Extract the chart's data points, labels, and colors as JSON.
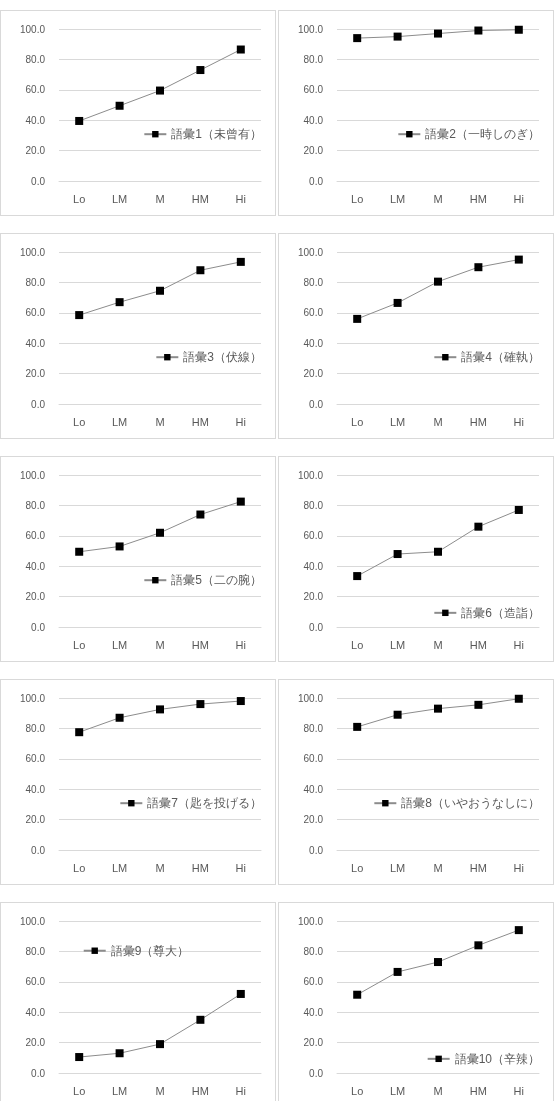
{
  "chart_data": [
    {
      "type": "line",
      "categories": [
        "Lo",
        "LM",
        "M",
        "HM",
        "Hi"
      ],
      "series": [
        {
          "name": "語彙1（未曾有）",
          "color": "#000000",
          "values": [
            39.5,
            49.5,
            59.5,
            73,
            86.5
          ]
        }
      ],
      "ylim": [
        0,
        100
      ],
      "yticks": [
        {
          "value": 0,
          "label": "0.0"
        },
        {
          "value": 20,
          "label": "20.0"
        },
        {
          "value": 40,
          "label": "40.0"
        },
        {
          "value": 60,
          "label": "60.0"
        },
        {
          "value": 80,
          "label": "80.0"
        },
        {
          "value": 100,
          "label": "100.0"
        }
      ],
      "grid": "y",
      "marker": "square",
      "legend": "right"
    },
    {
      "type": "line",
      "categories": [
        "Lo",
        "LM",
        "M",
        "HM",
        "Hi"
      ],
      "series": [
        {
          "name": "語彙2（一時しのぎ）",
          "color": "#000000",
          "values": [
            94,
            95,
            97,
            99,
            99.5
          ]
        }
      ],
      "ylim": [
        0,
        100
      ],
      "yticks": [
        {
          "value": 0,
          "label": "0.0"
        },
        {
          "value": 20,
          "label": "20.0"
        },
        {
          "value": 40,
          "label": "40.0"
        },
        {
          "value": 60,
          "label": "60.0"
        },
        {
          "value": 80,
          "label": "80.0"
        },
        {
          "value": 100,
          "label": "100.0"
        }
      ],
      "grid": "y",
      "marker": "square",
      "legend": "right"
    },
    {
      "type": "line",
      "categories": [
        "Lo",
        "LM",
        "M",
        "HM",
        "Hi"
      ],
      "series": [
        {
          "name": "語彙3（伏線）",
          "color": "#000000",
          "values": [
            58.5,
            67,
            74.5,
            88,
            93.5
          ]
        }
      ],
      "ylim": [
        0,
        100
      ],
      "yticks": [
        {
          "value": 0,
          "label": "0.0"
        },
        {
          "value": 20,
          "label": "20.0"
        },
        {
          "value": 40,
          "label": "40.0"
        },
        {
          "value": 60,
          "label": "60.0"
        },
        {
          "value": 80,
          "label": "80.0"
        },
        {
          "value": 100,
          "label": "100.0"
        }
      ],
      "grid": "y",
      "marker": "square",
      "legend": "right"
    },
    {
      "type": "line",
      "categories": [
        "Lo",
        "LM",
        "M",
        "HM",
        "Hi"
      ],
      "series": [
        {
          "name": "語彙4（確執）",
          "color": "#000000",
          "values": [
            56,
            66.5,
            80.5,
            90,
            95
          ]
        }
      ],
      "ylim": [
        0,
        100
      ],
      "yticks": [
        {
          "value": 0,
          "label": "0.0"
        },
        {
          "value": 20,
          "label": "20.0"
        },
        {
          "value": 40,
          "label": "40.0"
        },
        {
          "value": 60,
          "label": "60.0"
        },
        {
          "value": 80,
          "label": "80.0"
        },
        {
          "value": 100,
          "label": "100.0"
        }
      ],
      "grid": "y",
      "marker": "square",
      "legend": "right"
    },
    {
      "type": "line",
      "categories": [
        "Lo",
        "LM",
        "M",
        "HM",
        "Hi"
      ],
      "series": [
        {
          "name": "語彙5（二の腕）",
          "color": "#000000",
          "values": [
            49.5,
            53,
            62,
            74,
            82.5
          ]
        }
      ],
      "ylim": [
        0,
        100
      ],
      "yticks": [
        {
          "value": 0,
          "label": "0.0"
        },
        {
          "value": 20,
          "label": "20.0"
        },
        {
          "value": 40,
          "label": "40.0"
        },
        {
          "value": 60,
          "label": "60.0"
        },
        {
          "value": 80,
          "label": "80.0"
        },
        {
          "value": 100,
          "label": "100.0"
        }
      ],
      "grid": "y",
      "marker": "square",
      "legend": "right"
    },
    {
      "type": "line",
      "categories": [
        "Lo",
        "LM",
        "M",
        "HM",
        "Hi"
      ],
      "series": [
        {
          "name": "語彙6（造詣）",
          "color": "#000000",
          "values": [
            33.5,
            48,
            49.5,
            66,
            77
          ]
        }
      ],
      "ylim": [
        0,
        100
      ],
      "yticks": [
        {
          "value": 0,
          "label": "0.0"
        },
        {
          "value": 20,
          "label": "20.0"
        },
        {
          "value": 40,
          "label": "40.0"
        },
        {
          "value": 60,
          "label": "60.0"
        },
        {
          "value": 80,
          "label": "80.0"
        },
        {
          "value": 100,
          "label": "100.0"
        }
      ],
      "grid": "y",
      "marker": "square",
      "legend": "bottom right"
    },
    {
      "type": "line",
      "categories": [
        "Lo",
        "LM",
        "M",
        "HM",
        "Hi"
      ],
      "series": [
        {
          "name": "語彙7（匙を投げる）",
          "color": "#000000",
          "values": [
            77.5,
            87,
            92.5,
            96,
            98
          ]
        }
      ],
      "ylim": [
        0,
        100
      ],
      "yticks": [
        {
          "value": 0,
          "label": "0.0"
        },
        {
          "value": 20,
          "label": "20.0"
        },
        {
          "value": 40,
          "label": "40.0"
        },
        {
          "value": 60,
          "label": "60.0"
        },
        {
          "value": 80,
          "label": "80.0"
        },
        {
          "value": 100,
          "label": "100.0"
        }
      ],
      "grid": "y",
      "marker": "square",
      "legend": "right"
    },
    {
      "type": "line",
      "categories": [
        "Lo",
        "LM",
        "M",
        "HM",
        "Hi"
      ],
      "series": [
        {
          "name": "語彙8（いやおうなしに）",
          "color": "#000000",
          "values": [
            81,
            89,
            93,
            95.5,
            99.5
          ]
        }
      ],
      "ylim": [
        0,
        100
      ],
      "yticks": [
        {
          "value": 0,
          "label": "0.0"
        },
        {
          "value": 20,
          "label": "20.0"
        },
        {
          "value": 40,
          "label": "40.0"
        },
        {
          "value": 60,
          "label": "60.0"
        },
        {
          "value": 80,
          "label": "80.0"
        },
        {
          "value": 100,
          "label": "100.0"
        }
      ],
      "grid": "y",
      "marker": "square",
      "legend": "right"
    },
    {
      "type": "line",
      "categories": [
        "Lo",
        "LM",
        "M",
        "HM",
        "Hi"
      ],
      "series": [
        {
          "name": "語彙9（尊大）",
          "color": "#000000",
          "values": [
            10.5,
            13,
            19,
            35,
            52
          ]
        }
      ],
      "ylim": [
        0,
        100
      ],
      "yticks": [
        {
          "value": 0,
          "label": "0.0"
        },
        {
          "value": 20,
          "label": "20.0"
        },
        {
          "value": 40,
          "label": "40.0"
        },
        {
          "value": 60,
          "label": "60.0"
        },
        {
          "value": 80,
          "label": "80.0"
        },
        {
          "value": 100,
          "label": "100.0"
        }
      ],
      "grid": "y",
      "marker": "square",
      "legend": "top left"
    },
    {
      "type": "line",
      "categories": [
        "Lo",
        "LM",
        "M",
        "HM",
        "Hi"
      ],
      "series": [
        {
          "name": "語彙10（辛辣）",
          "color": "#000000",
          "values": [
            51.5,
            66.5,
            73,
            84,
            94
          ]
        }
      ],
      "ylim": [
        0,
        100
      ],
      "yticks": [
        {
          "value": 0,
          "label": "0.0"
        },
        {
          "value": 20,
          "label": "20.0"
        },
        {
          "value": 40,
          "label": "40.0"
        },
        {
          "value": 60,
          "label": "60.0"
        },
        {
          "value": 80,
          "label": "80.0"
        },
        {
          "value": 100,
          "label": "100.0"
        }
      ],
      "grid": "y",
      "marker": "square",
      "legend": "bottom right"
    }
  ]
}
